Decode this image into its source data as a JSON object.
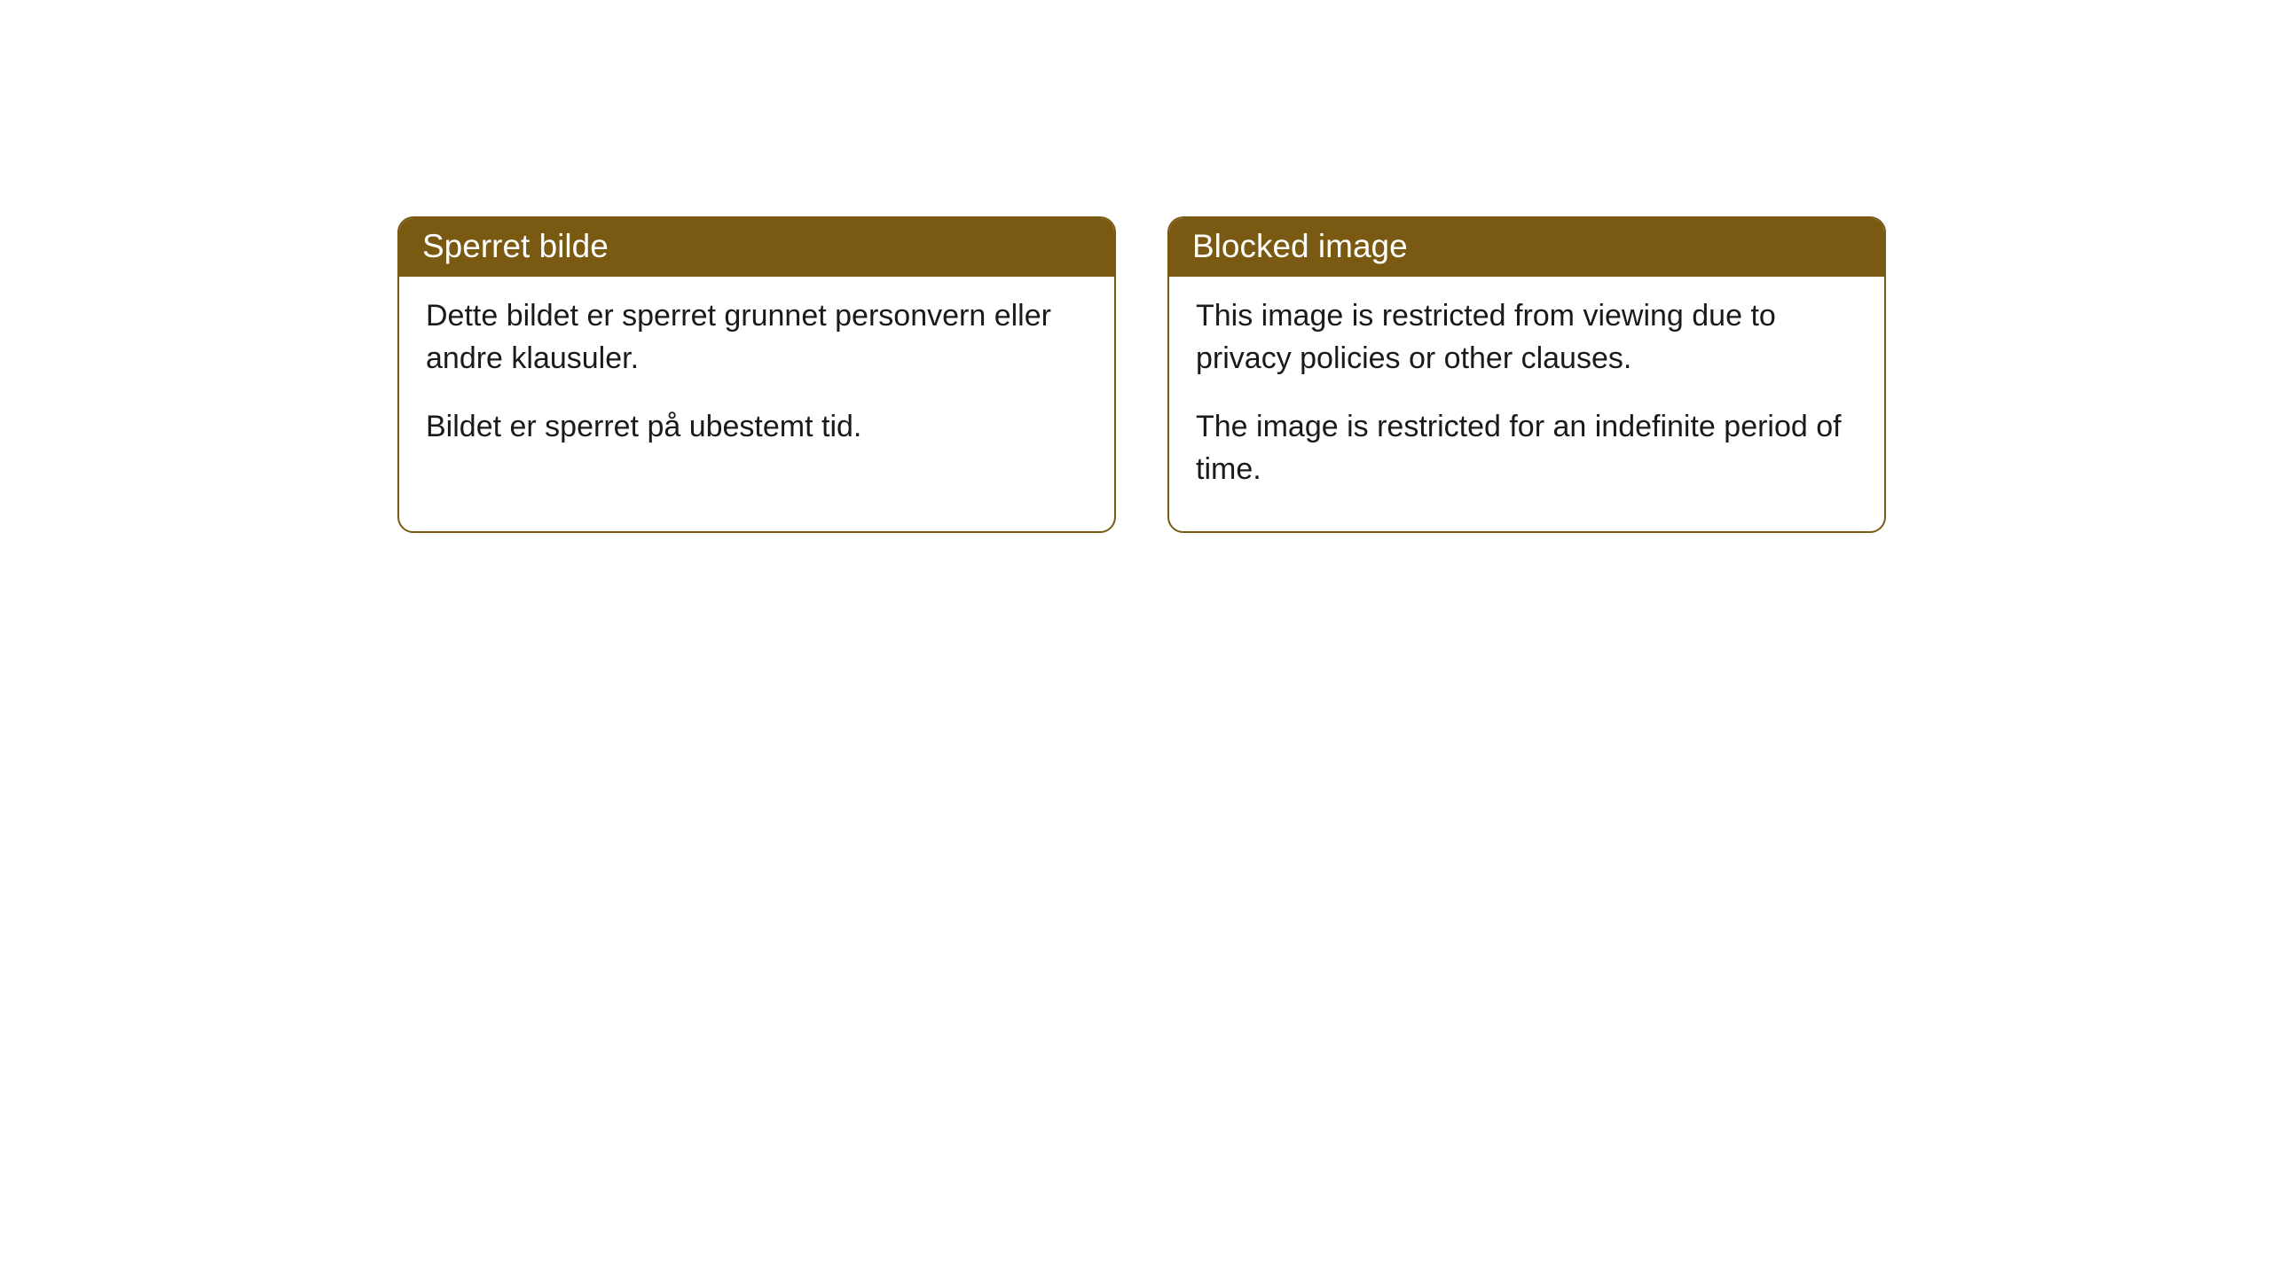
{
  "cards": [
    {
      "title": "Sperret bilde",
      "paragraph1": "Dette bildet er sperret grunnet personvern eller andre klausuler.",
      "paragraph2": "Bildet er sperret på ubestemt tid."
    },
    {
      "title": "Blocked image",
      "paragraph1": "This image is restricted from viewing due to privacy policies or other clauses.",
      "paragraph2": "The image is restricted for an indefinite period of time."
    }
  ],
  "colors": {
    "header_bg": "#7a5a13",
    "header_text": "#ffffff",
    "body_text": "#1a1a1a",
    "border": "#7a5a13",
    "page_bg": "#ffffff"
  }
}
